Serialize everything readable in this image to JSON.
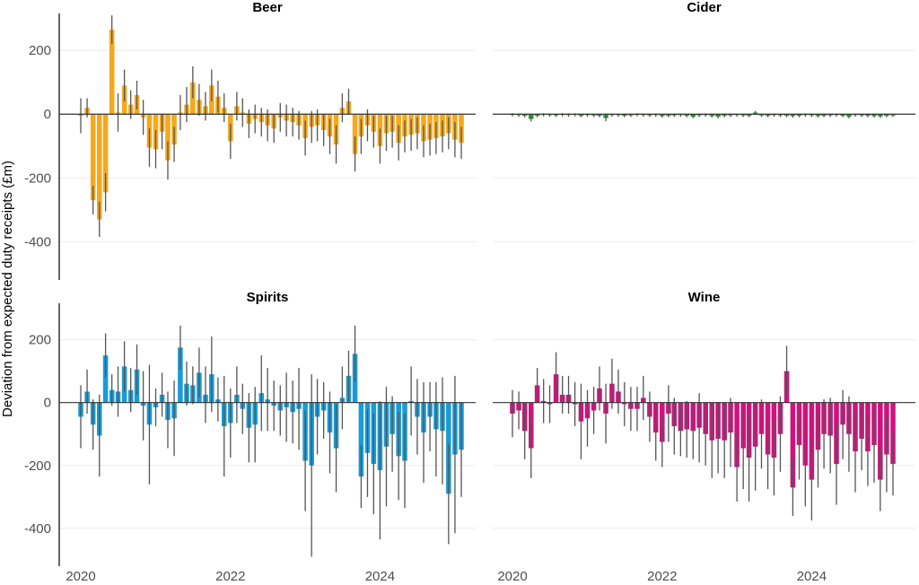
{
  "chart_data": {
    "type": "bar",
    "ylabel": "Deviation from expected duty receipts (£m)",
    "x_ticks": [
      "2020",
      "2022",
      "2024"
    ],
    "y_ticks": [
      -400,
      -200,
      0,
      200
    ],
    "ylim": [
      -520,
      330
    ],
    "grid": "horizontal",
    "colors": {
      "Beer": "#f5a81c",
      "Cider": "#1fa11f",
      "Spirits": "#1a9bd7",
      "Wine": "#d0127d",
      "errorbar": "#555555"
    },
    "x": [
      "2020-01",
      "2020-02",
      "2020-03",
      "2020-04",
      "2020-05",
      "2020-06",
      "2020-07",
      "2020-08",
      "2020-09",
      "2020-10",
      "2020-11",
      "2020-12",
      "2021-01",
      "2021-02",
      "2021-03",
      "2021-04",
      "2021-05",
      "2021-06",
      "2021-07",
      "2021-08",
      "2021-09",
      "2021-10",
      "2021-11",
      "2021-12",
      "2022-01",
      "2022-02",
      "2022-03",
      "2022-04",
      "2022-05",
      "2022-06",
      "2022-07",
      "2022-08",
      "2022-09",
      "2022-10",
      "2022-11",
      "2022-12",
      "2023-01",
      "2023-02",
      "2023-03",
      "2023-04",
      "2023-05",
      "2023-06",
      "2023-07",
      "2023-08",
      "2023-09",
      "2023-10",
      "2023-11",
      "2023-12",
      "2024-01",
      "2024-02",
      "2024-03",
      "2024-04",
      "2024-05",
      "2024-06",
      "2024-07",
      "2024-08",
      "2024-09",
      "2024-10",
      "2024-11",
      "2024-12",
      "2025-01",
      "2025-02"
    ],
    "series": [
      {
        "name": "Beer",
        "values": [
          -5,
          20,
          -270,
          -330,
          -245,
          265,
          5,
          90,
          30,
          60,
          -10,
          -105,
          -110,
          -55,
          -145,
          -95,
          5,
          30,
          100,
          45,
          25,
          90,
          55,
          20,
          -85,
          25,
          5,
          -30,
          -15,
          -25,
          -35,
          -45,
          -10,
          -20,
          -25,
          -35,
          -75,
          -40,
          -35,
          -50,
          -70,
          -95,
          20,
          40,
          -125,
          -70,
          -35,
          -55,
          -100,
          -60,
          -55,
          -90,
          -70,
          -65,
          -60,
          -85,
          -80,
          -75,
          -70,
          -60,
          -80,
          -90
        ],
        "errors": [
          55,
          30,
          45,
          55,
          60,
          45,
          60,
          50,
          45,
          45,
          55,
          60,
          60,
          55,
          60,
          55,
          55,
          55,
          50,
          50,
          45,
          50,
          50,
          45,
          55,
          45,
          45,
          45,
          45,
          45,
          50,
          45,
          45,
          50,
          45,
          45,
          55,
          50,
          50,
          50,
          55,
          60,
          45,
          40,
          55,
          55,
          50,
          50,
          55,
          55,
          50,
          55,
          50,
          50,
          50,
          50,
          50,
          50,
          50,
          50,
          55,
          50
        ]
      },
      {
        "name": "Cider",
        "values": [
          -2,
          -3,
          -5,
          -15,
          -5,
          -2,
          -3,
          -4,
          -2,
          -3,
          -2,
          -5,
          -3,
          -4,
          -5,
          -12,
          -3,
          -3,
          -5,
          -4,
          -2,
          -3,
          -4,
          -3,
          -6,
          -5,
          -4,
          -3,
          -5,
          -8,
          -4,
          -3,
          -6,
          -8,
          -5,
          -4,
          -3,
          -4,
          -5,
          5,
          -4,
          -5,
          -3,
          -4,
          -5,
          -6,
          -5,
          -3,
          -4,
          -6,
          -5,
          -4,
          -3,
          -5,
          -8,
          -3,
          -4,
          -5,
          -6,
          -7,
          -5,
          -4
        ],
        "errors": [
          5,
          5,
          5,
          8,
          5,
          5,
          5,
          5,
          5,
          5,
          5,
          5,
          5,
          5,
          5,
          10,
          5,
          5,
          5,
          5,
          5,
          5,
          5,
          5,
          5,
          5,
          5,
          5,
          5,
          5,
          5,
          5,
          5,
          5,
          5,
          5,
          5,
          5,
          5,
          5,
          5,
          5,
          5,
          5,
          5,
          5,
          5,
          5,
          5,
          5,
          5,
          5,
          5,
          5,
          5,
          5,
          5,
          5,
          5,
          5,
          5,
          5
        ]
      },
      {
        "name": "Spirits",
        "values": [
          -45,
          35,
          -70,
          -105,
          150,
          40,
          35,
          115,
          40,
          105,
          -10,
          -70,
          -15,
          25,
          -55,
          -50,
          175,
          60,
          55,
          95,
          25,
          90,
          10,
          -75,
          -65,
          25,
          -20,
          -80,
          -70,
          30,
          10,
          -10,
          -25,
          -15,
          -30,
          -20,
          -185,
          -200,
          -45,
          -25,
          -95,
          -145,
          15,
          85,
          155,
          -235,
          -160,
          -195,
          -215,
          -140,
          -100,
          -170,
          -185,
          5,
          -45,
          -95,
          -45,
          -85,
          -90,
          -290,
          -165,
          -150
        ],
        "errors": [
          100,
          70,
          80,
          130,
          70,
          50,
          80,
          80,
          70,
          80,
          110,
          190,
          60,
          70,
          90,
          120,
          70,
          70,
          60,
          80,
          90,
          120,
          70,
          160,
          110,
          90,
          80,
          110,
          120,
          120,
          100,
          80,
          80,
          110,
          100,
          130,
          160,
          290,
          120,
          90,
          130,
          140,
          100,
          80,
          90,
          100,
          140,
          160,
          220,
          190,
          120,
          140,
          150,
          110,
          120,
          160,
          110,
          150,
          170,
          160,
          250,
          150
        ]
      },
      {
        "name": "Wine",
        "values": [
          -35,
          -25,
          -90,
          -145,
          55,
          5,
          -5,
          90,
          25,
          25,
          -5,
          -60,
          -50,
          -25,
          45,
          -35,
          60,
          35,
          -5,
          -20,
          -20,
          15,
          -45,
          -95,
          -125,
          -35,
          -75,
          -90,
          -85,
          -90,
          -80,
          -100,
          -120,
          -115,
          -120,
          -95,
          -205,
          -145,
          -175,
          -140,
          -100,
          -165,
          -175,
          -100,
          100,
          -270,
          -135,
          -200,
          -245,
          -150,
          -100,
          -105,
          -195,
          -70,
          -100,
          -155,
          -115,
          -155,
          -135,
          -245,
          -165,
          -195
        ],
        "errors": [
          75,
          60,
          90,
          95,
          55,
          70,
          60,
          70,
          60,
          60,
          70,
          120,
          90,
          75,
          70,
          95,
          80,
          70,
          70,
          70,
          70,
          70,
          80,
          90,
          80,
          90,
          90,
          80,
          90,
          90,
          110,
          100,
          120,
          110,
          120,
          110,
          110,
          130,
          140,
          140,
          110,
          110,
          120,
          120,
          80,
          90,
          110,
          130,
          130,
          120,
          110,
          120,
          130,
          110,
          120,
          130,
          100,
          110,
          120,
          100,
          120,
          100
        ]
      }
    ]
  }
}
